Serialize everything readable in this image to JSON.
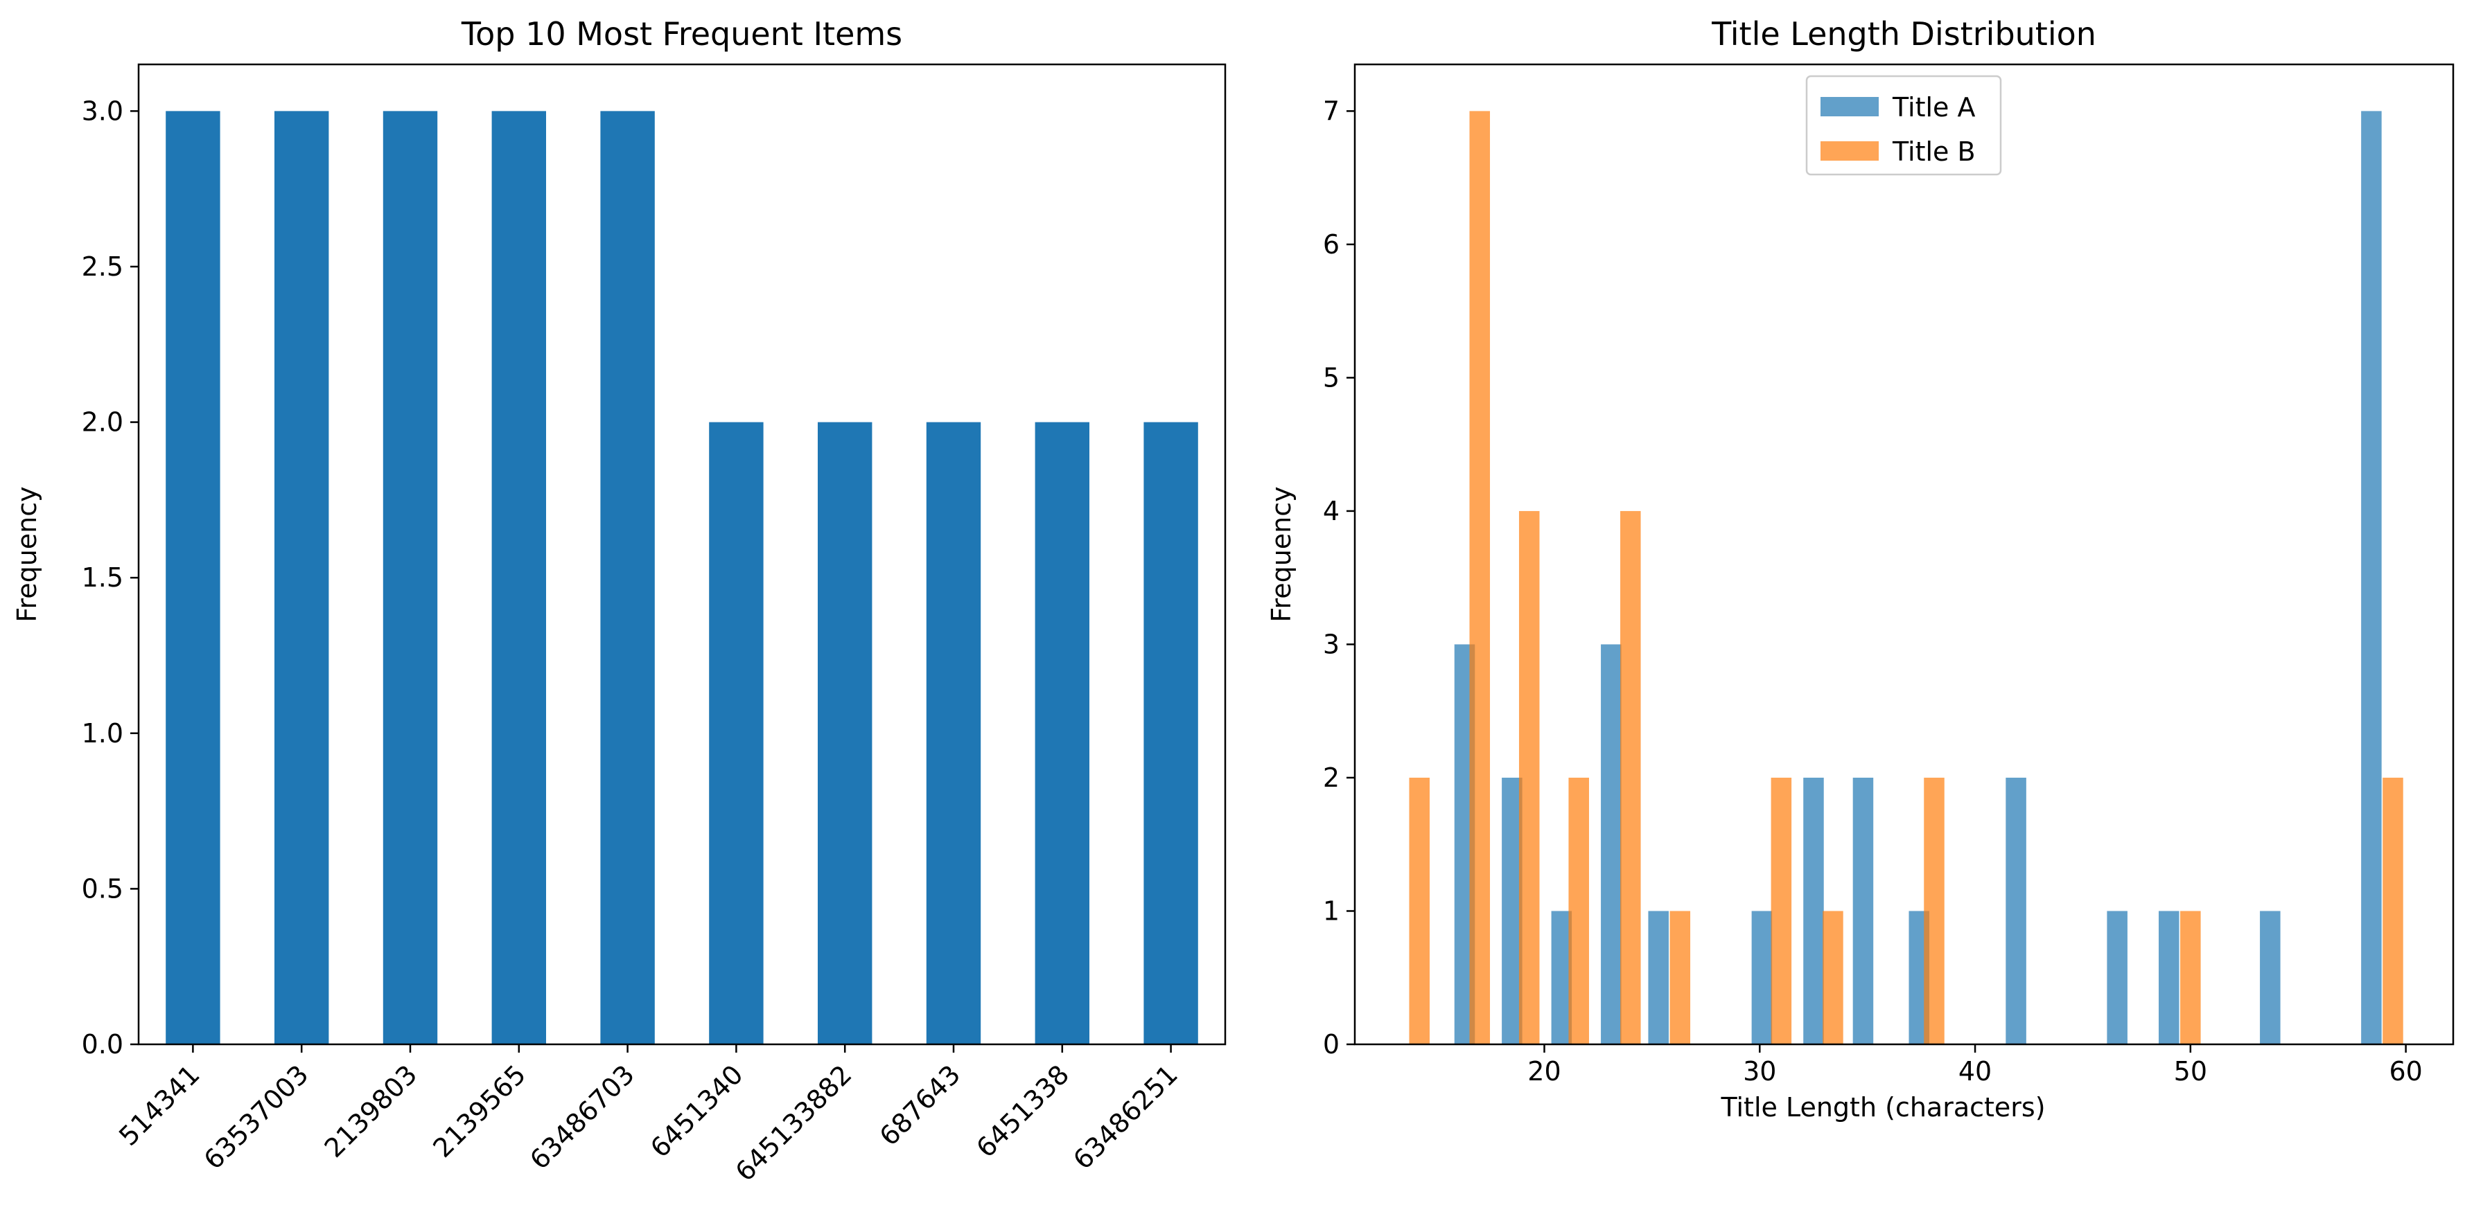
{
  "chart_data": [
    {
      "type": "bar",
      "title": "Top 10 Most Frequent Items",
      "xlabel": "",
      "ylabel": "Frequency",
      "categories": [
        "514341",
        "63537003",
        "2139803",
        "2139565",
        "63486703",
        "6451340",
        "645133882",
        "687643",
        "6451338",
        "63486251"
      ],
      "values": [
        3,
        3,
        3,
        3,
        3,
        2,
        2,
        2,
        2,
        2
      ],
      "ylim": [
        0,
        3.15
      ],
      "yticks": [
        0.0,
        0.5,
        1.0,
        1.5,
        2.0,
        2.5,
        3.0
      ],
      "ytick_labels": [
        "0.0",
        "0.5",
        "1.0",
        "1.5",
        "2.0",
        "2.5",
        "3.0"
      ],
      "color": "#1f77b4",
      "grid": false
    },
    {
      "type": "bar",
      "subtype": "histogram",
      "title": "Title Length Distribution",
      "xlabel": "Title Length (characters)",
      "ylabel": "Frequency",
      "xlim": [
        11.2,
        62.2
      ],
      "ylim": [
        0,
        7.35
      ],
      "xticks": [
        20,
        30,
        40,
        50,
        60
      ],
      "yticks": [
        0,
        1,
        2,
        3,
        4,
        5,
        6,
        7
      ],
      "legend": "top-center",
      "grid": false,
      "series": [
        {
          "name": "Title A",
          "color": "#1f77b4",
          "opacity": 0.7,
          "bins": [
            {
              "x": 16.3,
              "count": 3
            },
            {
              "x": 18.5,
              "count": 2
            },
            {
              "x": 20.8,
              "count": 1
            },
            {
              "x": 23.1,
              "count": 3
            },
            {
              "x": 25.3,
              "count": 1
            },
            {
              "x": 30.1,
              "count": 1
            },
            {
              "x": 32.5,
              "count": 2
            },
            {
              "x": 34.8,
              "count": 2
            },
            {
              "x": 37.4,
              "count": 1
            },
            {
              "x": 41.9,
              "count": 2
            },
            {
              "x": 46.6,
              "count": 1
            },
            {
              "x": 49.0,
              "count": 1
            },
            {
              "x": 53.7,
              "count": 1
            },
            {
              "x": 58.4,
              "count": 7
            }
          ]
        },
        {
          "name": "Title B",
          "color": "#ff7f0e",
          "opacity": 0.7,
          "bins": [
            {
              "x": 14.2,
              "count": 2
            },
            {
              "x": 17.0,
              "count": 7
            },
            {
              "x": 19.3,
              "count": 4
            },
            {
              "x": 21.6,
              "count": 2
            },
            {
              "x": 24.0,
              "count": 4
            },
            {
              "x": 26.3,
              "count": 1
            },
            {
              "x": 31.0,
              "count": 2
            },
            {
              "x": 33.4,
              "count": 1
            },
            {
              "x": 38.1,
              "count": 2
            },
            {
              "x": 50.0,
              "count": 1
            },
            {
              "x": 59.4,
              "count": 2
            }
          ]
        }
      ]
    }
  ]
}
